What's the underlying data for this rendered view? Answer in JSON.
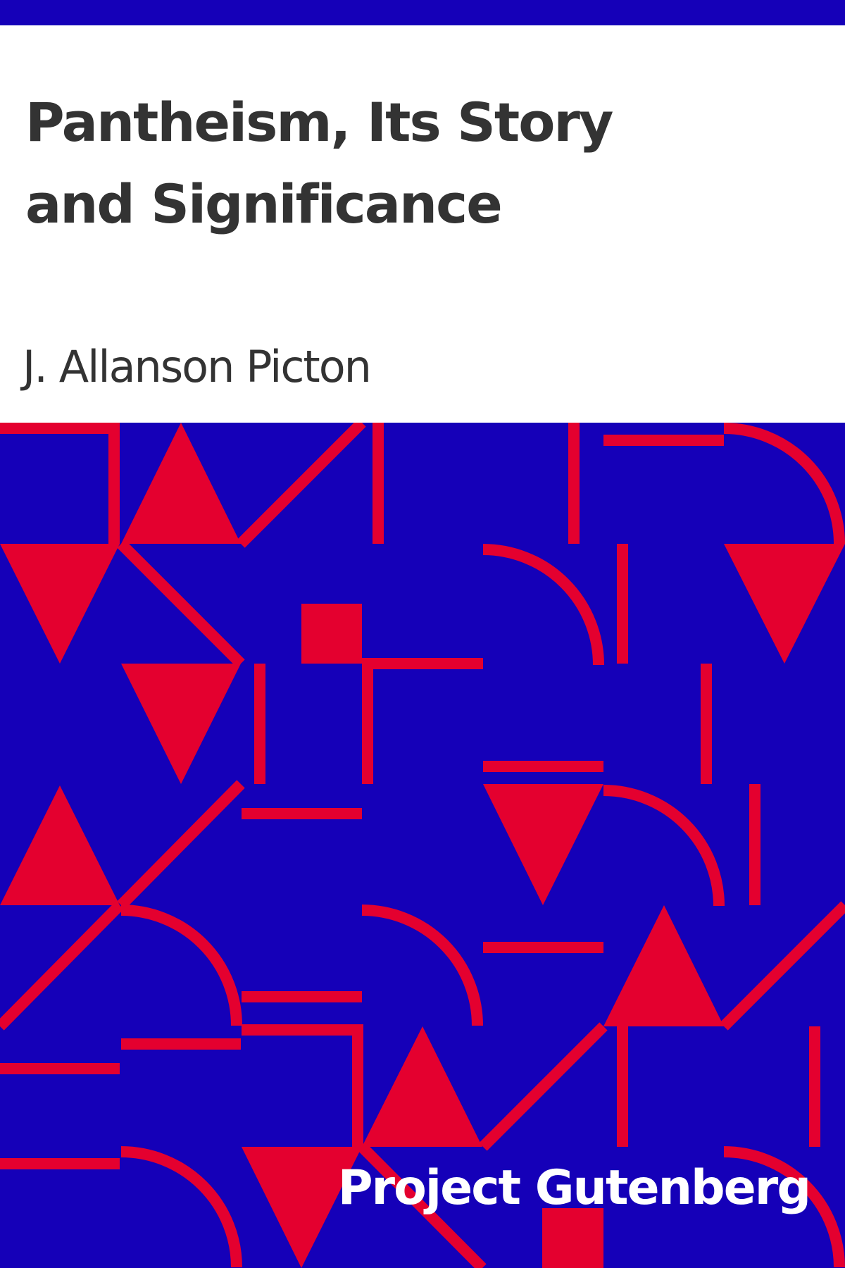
{
  "book": {
    "title": "Pantheism, Its Story and Significance",
    "author": "J. Allanson Picton",
    "publisher": "Project Gutenberg"
  },
  "colors": {
    "background_blue": "#1500b8",
    "pattern_red": "#e4002f",
    "title_text": "#333333",
    "panel_white": "#ffffff"
  }
}
